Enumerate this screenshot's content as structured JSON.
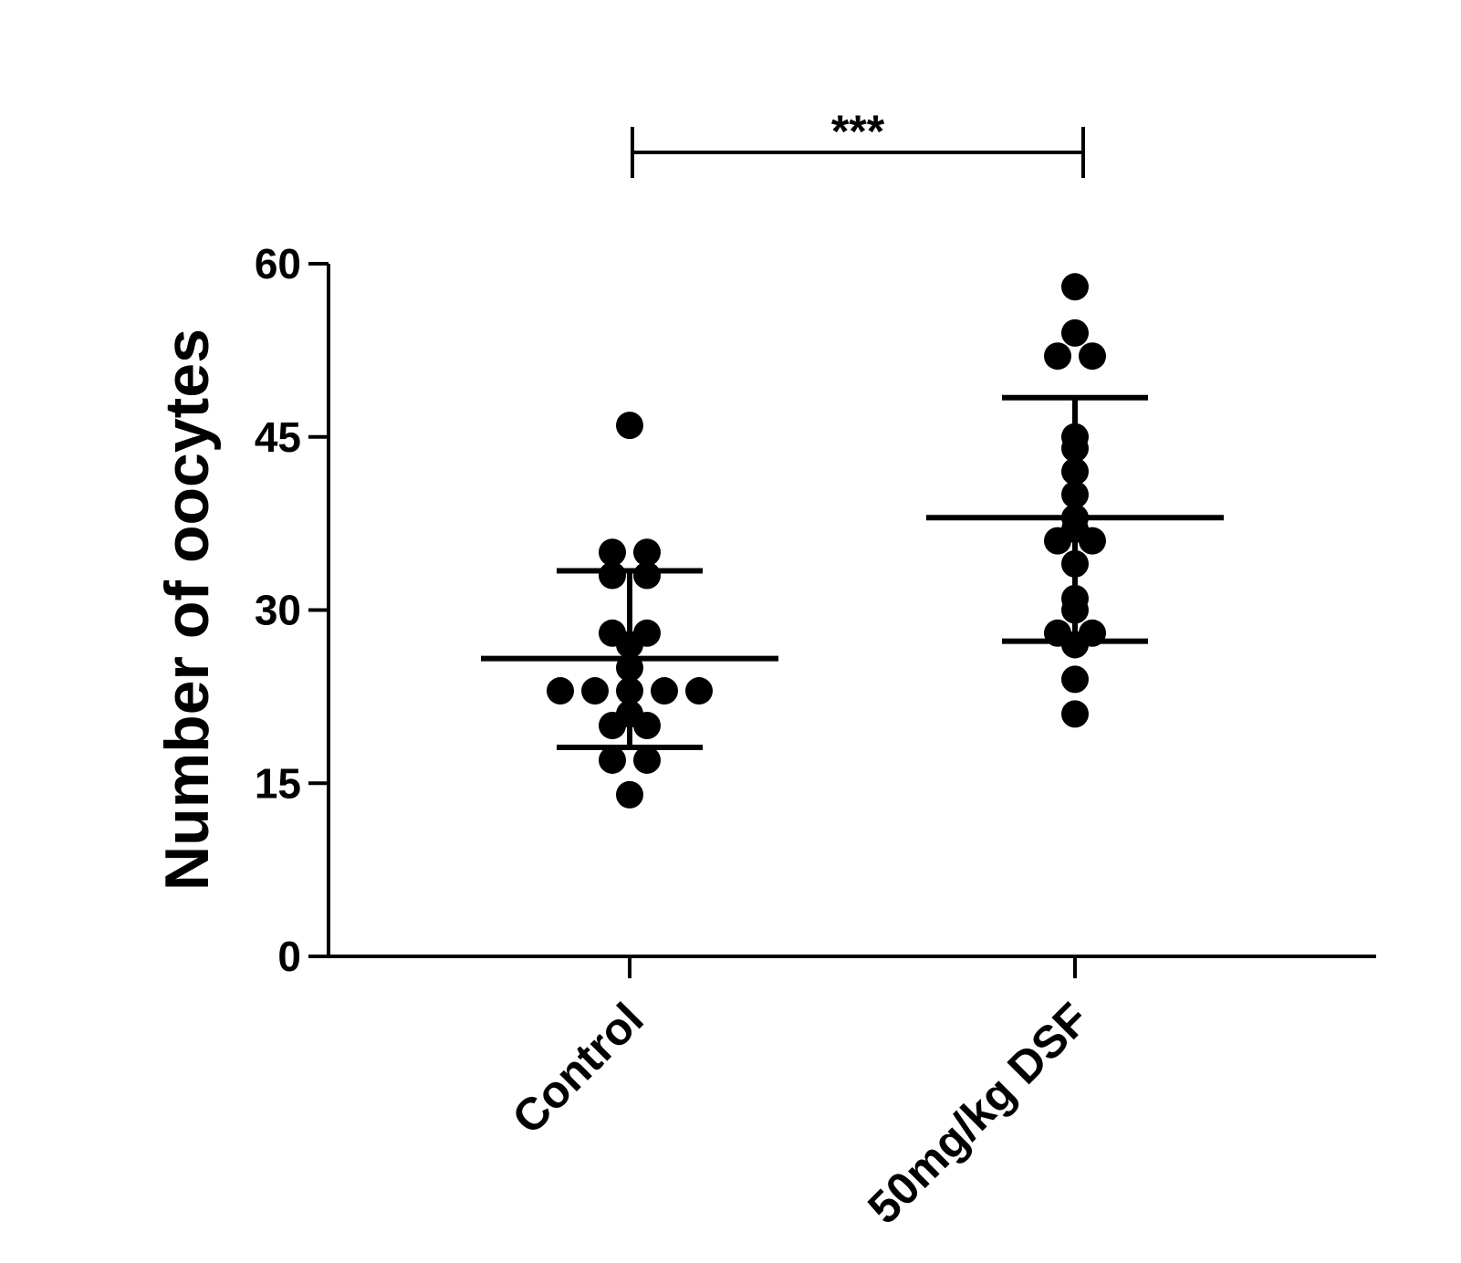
{
  "chart_data": {
    "type": "scatter",
    "title": "",
    "xlabel": "",
    "ylabel": "Number of oocytes",
    "ylim": [
      0,
      60
    ],
    "yticks": [
      "0",
      "15",
      "30",
      "45",
      "60"
    ],
    "grid": false,
    "categories": [
      "Control",
      "50mg/kg DSF"
    ],
    "series": [
      {
        "values": [
          46,
          35,
          35,
          33,
          33,
          28,
          28,
          27,
          25,
          23,
          23,
          23,
          23,
          23,
          21,
          20,
          20,
          17,
          17,
          14
        ],
        "mean": 25.8,
        "sd_upper": 33.4,
        "sd_lower": 18.1
      },
      {
        "values": [
          58,
          54,
          52,
          52,
          45,
          44,
          42,
          40,
          38,
          37,
          36,
          36,
          34,
          31,
          30,
          28,
          28,
          27,
          24,
          21
        ],
        "mean": 38.0,
        "sd_upper": 48.4,
        "sd_lower": 27.3
      }
    ],
    "significance": {
      "label": "***",
      "between": [
        "Control",
        "50mg/kg DSF"
      ]
    }
  }
}
